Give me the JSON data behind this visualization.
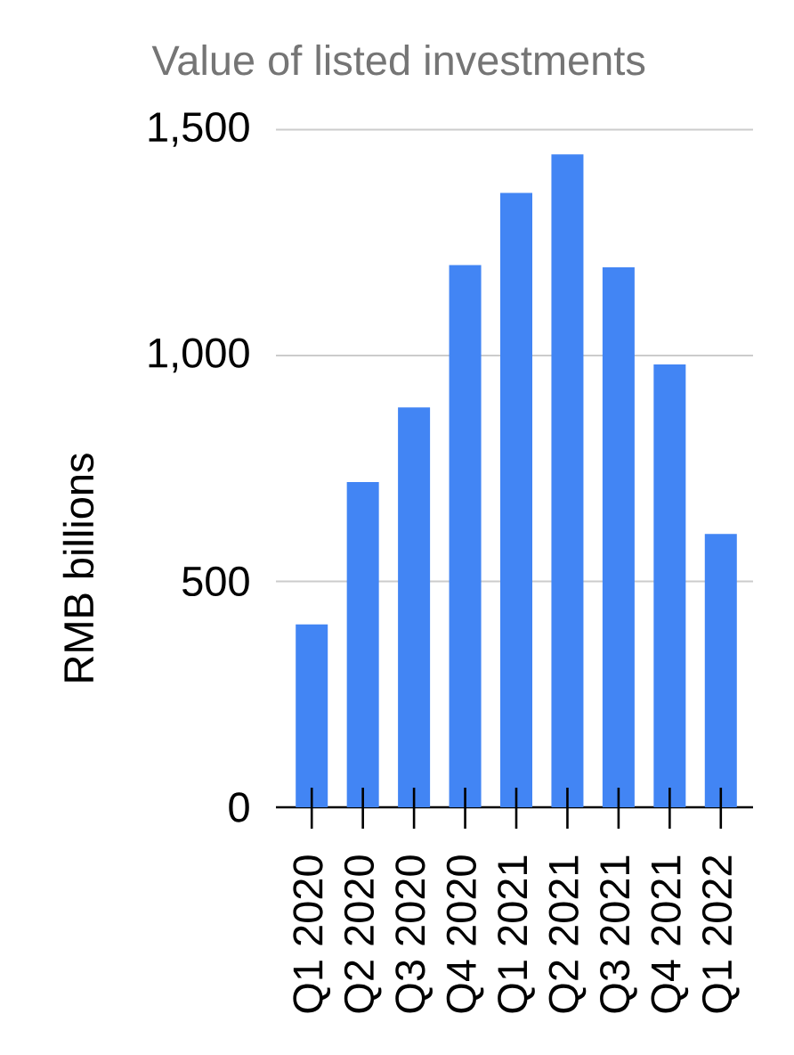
{
  "chart_data": {
    "type": "bar",
    "title": "Value of listed investments",
    "ylabel": "RMB billions",
    "categories": [
      "Q1 2020",
      "Q2 2020",
      "Q3 2020",
      "Q4 2020",
      "Q1 2021",
      "Q2 2021",
      "Q3 2021",
      "Q4 2021",
      "Q1 2022"
    ],
    "values": [
      405,
      720,
      885,
      1200,
      1360,
      1445,
      1195,
      980,
      605
    ],
    "color": "#4285f4",
    "ylim": [
      0,
      1500
    ],
    "yticks": [
      0,
      500,
      {
        "value": 1000,
        "label": "1,000"
      },
      {
        "value": 1500,
        "label": "1,500"
      }
    ],
    "grid": "y"
  }
}
